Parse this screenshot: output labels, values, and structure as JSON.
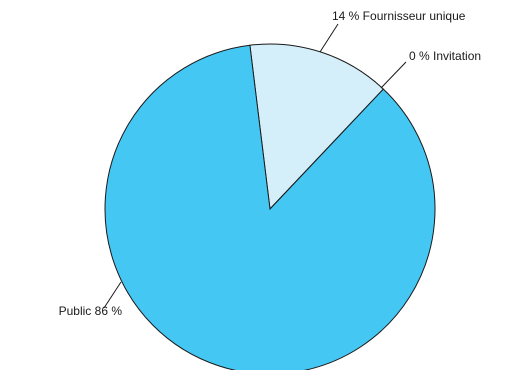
{
  "chart_data": {
    "type": "pie",
    "title": "",
    "slices": [
      {
        "label": "Fournisseur unique",
        "value": 14,
        "display": "14 % Fournisseur unique",
        "color": "#d4eefa"
      },
      {
        "label": "Invitation",
        "value": 0,
        "display": "0 % Invitation",
        "color": "#d4eefa"
      },
      {
        "label": "Public",
        "value": 86,
        "display": "Public 86 %",
        "color": "#45c7f4"
      }
    ],
    "legend": "none",
    "start_angle_deg": -7
  }
}
